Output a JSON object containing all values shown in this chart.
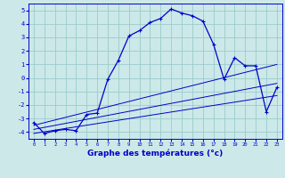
{
  "xlabel": "Graphe des températures (°c)",
  "bg_color": "#cce8e8",
  "grid_color": "#99cccc",
  "line_color": "#0000cc",
  "xlim": [
    -0.5,
    23.5
  ],
  "ylim": [
    -4.5,
    5.5
  ],
  "yticks": [
    -4,
    -3,
    -2,
    -1,
    0,
    1,
    2,
    3,
    4,
    5
  ],
  "xticks": [
    0,
    1,
    2,
    3,
    4,
    5,
    6,
    7,
    8,
    9,
    10,
    11,
    12,
    13,
    14,
    15,
    16,
    17,
    18,
    19,
    20,
    21,
    22,
    23
  ],
  "main_x": [
    0,
    1,
    2,
    3,
    4,
    5,
    6,
    7,
    8,
    9,
    10,
    11,
    12,
    13,
    14,
    15,
    16,
    17,
    18,
    19,
    20,
    21,
    22,
    23
  ],
  "main_y": [
    -3.3,
    -4.1,
    -3.9,
    -3.8,
    -3.9,
    -2.7,
    -2.6,
    -0.1,
    1.3,
    3.1,
    3.5,
    4.1,
    4.4,
    5.1,
    4.8,
    4.6,
    4.2,
    2.5,
    -0.1,
    1.5,
    0.9,
    0.9,
    -2.5,
    -0.7
  ],
  "line2_x": [
    0,
    23
  ],
  "line2_y": [
    -3.5,
    1.0
  ],
  "line3_x": [
    0,
    23
  ],
  "line3_y": [
    -3.8,
    -0.4
  ],
  "line4_x": [
    0,
    23
  ],
  "line4_y": [
    -4.1,
    -1.3
  ]
}
